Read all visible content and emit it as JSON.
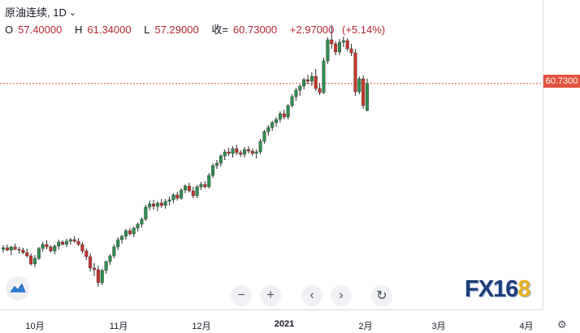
{
  "legend": {
    "symbol": "原油连续",
    "interval": "1D",
    "open_label": "O",
    "open": "57.40000",
    "high_label": "H",
    "high": "61.34000",
    "low_label": "L",
    "low": "57.29000",
    "close_label": "收=",
    "close": "60.73000",
    "change": "+2.97000",
    "change_pct": "(+5.14%)"
  },
  "price_tag": "60.7300",
  "controls": {
    "zoom_out": "−",
    "zoom_in": "+",
    "scroll_left": "‹",
    "scroll_right": "›",
    "reset": "↻"
  },
  "time_axis": {
    "ticks": [
      {
        "label": "10月",
        "bold": false
      },
      {
        "label": "11月",
        "bold": false
      },
      {
        "label": "12月",
        "bold": false
      },
      {
        "label": "2021",
        "bold": true
      },
      {
        "label": "2月",
        "bold": false
      },
      {
        "label": "3月",
        "bold": false
      },
      {
        "label": "4月",
        "bold": false
      }
    ]
  },
  "watermark": {
    "text_main": "FX16",
    "text_accent": "8"
  },
  "colors": {
    "up": "#2f8f4e",
    "down": "#c8342b",
    "price_line": "#e0533e"
  },
  "chart_data": {
    "type": "candlestick",
    "title": "",
    "candles": [
      [
        40.3,
        40.8,
        39.9,
        40.5
      ],
      [
        40.5,
        40.9,
        40.1,
        40.2
      ],
      [
        40.2,
        40.7,
        39.6,
        40.6
      ],
      [
        40.6,
        41.0,
        40.2,
        40.3
      ],
      [
        40.3,
        40.6,
        39.8,
        40.2
      ],
      [
        40.2,
        40.5,
        39.7,
        39.9
      ],
      [
        39.9,
        40.4,
        39.3,
        39.5
      ],
      [
        39.5,
        39.8,
        38.3,
        38.5
      ],
      [
        38.5,
        39.6,
        38.1,
        39.2
      ],
      [
        39.2,
        40.6,
        39.0,
        40.4
      ],
      [
        40.4,
        41.2,
        40.0,
        40.9
      ],
      [
        40.9,
        41.4,
        40.3,
        40.6
      ],
      [
        40.6,
        40.8,
        39.9,
        40.1
      ],
      [
        40.1,
        40.9,
        39.7,
        40.7
      ],
      [
        40.7,
        41.5,
        40.3,
        41.2
      ],
      [
        41.2,
        41.4,
        40.8,
        40.9
      ],
      [
        40.9,
        41.6,
        40.6,
        41.3
      ],
      [
        41.3,
        41.7,
        40.9,
        41.5
      ],
      [
        41.5,
        41.9,
        41.1,
        41.3
      ],
      [
        41.3,
        41.7,
        40.7,
        40.9
      ],
      [
        40.9,
        41.2,
        39.8,
        40.1
      ],
      [
        40.1,
        40.4,
        39.0,
        39.4
      ],
      [
        39.4,
        39.8,
        37.6,
        38.0
      ],
      [
        38.0,
        38.6,
        37.0,
        37.8
      ],
      [
        37.8,
        38.3,
        35.7,
        36.2
      ],
      [
        36.2,
        37.9,
        35.9,
        37.7
      ],
      [
        37.7,
        38.9,
        37.3,
        38.8
      ],
      [
        38.8,
        39.7,
        38.4,
        39.5
      ],
      [
        39.5,
        40.9,
        39.2,
        40.6
      ],
      [
        40.6,
        41.8,
        40.2,
        41.5
      ],
      [
        41.5,
        42.1,
        41.0,
        41.9
      ],
      [
        41.9,
        42.8,
        41.5,
        42.6
      ],
      [
        42.6,
        42.9,
        42.0,
        42.2
      ],
      [
        42.2,
        43.1,
        41.8,
        42.9
      ],
      [
        42.9,
        43.6,
        42.5,
        43.4
      ],
      [
        43.4,
        44.2,
        43.0,
        44.0
      ],
      [
        44.0,
        45.8,
        43.8,
        45.5
      ],
      [
        45.5,
        46.3,
        45.1,
        45.9
      ],
      [
        45.9,
        46.4,
        45.2,
        45.6
      ],
      [
        45.6,
        46.2,
        45.0,
        46.0
      ],
      [
        46.0,
        46.5,
        45.4,
        45.7
      ],
      [
        45.7,
        46.5,
        45.3,
        46.2
      ],
      [
        46.2,
        46.8,
        45.7,
        46.4
      ],
      [
        46.4,
        47.2,
        46.0,
        47.0
      ],
      [
        47.0,
        47.4,
        46.3,
        46.6
      ],
      [
        46.6,
        47.8,
        46.4,
        47.6
      ],
      [
        47.6,
        48.3,
        47.2,
        48.1
      ],
      [
        48.1,
        48.5,
        47.3,
        47.5
      ],
      [
        47.5,
        48.0,
        46.6,
        46.9
      ],
      [
        46.9,
        48.2,
        46.6,
        48.0
      ],
      [
        48.0,
        48.6,
        47.6,
        48.3
      ],
      [
        48.3,
        48.7,
        47.8,
        48.0
      ],
      [
        48.0,
        49.7,
        47.8,
        49.4
      ],
      [
        49.4,
        50.9,
        49.1,
        50.6
      ],
      [
        50.6,
        51.3,
        50.2,
        50.9
      ],
      [
        50.9,
        52.0,
        50.5,
        51.8
      ],
      [
        51.8,
        52.6,
        51.3,
        52.3
      ],
      [
        52.3,
        52.8,
        51.8,
        52.1
      ],
      [
        52.1,
        53.0,
        51.6,
        52.7
      ],
      [
        52.7,
        53.2,
        51.9,
        52.2
      ],
      [
        52.2,
        52.5,
        51.7,
        52.0
      ],
      [
        52.0,
        52.9,
        51.6,
        52.6
      ],
      [
        52.6,
        53.0,
        52.1,
        52.4
      ],
      [
        52.4,
        52.7,
        51.8,
        52.1
      ],
      [
        52.1,
        52.6,
        51.5,
        52.3
      ],
      [
        52.3,
        53.9,
        52.0,
        53.6
      ],
      [
        53.6,
        55.0,
        53.3,
        54.8
      ],
      [
        54.8,
        55.6,
        54.3,
        55.3
      ],
      [
        55.3,
        56.1,
        54.9,
        55.9
      ],
      [
        55.9,
        56.6,
        55.4,
        56.3
      ],
      [
        56.3,
        57.3,
        55.9,
        57.0
      ],
      [
        57.0,
        57.5,
        56.3,
        56.6
      ],
      [
        56.6,
        58.2,
        56.3,
        58.0
      ],
      [
        58.0,
        59.4,
        57.8,
        59.1
      ],
      [
        59.1,
        60.2,
        58.6,
        59.9
      ],
      [
        59.9,
        60.6,
        59.2,
        60.4
      ],
      [
        60.4,
        61.4,
        60.0,
        61.2
      ],
      [
        61.2,
        61.8,
        60.6,
        61.0
      ],
      [
        61.0,
        62.1,
        60.4,
        61.6
      ],
      [
        61.6,
        62.5,
        59.8,
        60.1
      ],
      [
        60.1,
        60.7,
        59.3,
        59.6
      ],
      [
        59.6,
        63.9,
        59.4,
        63.5
      ],
      [
        63.5,
        66.4,
        63.1,
        66.1
      ],
      [
        66.1,
        67.9,
        65.0,
        65.6
      ],
      [
        65.6,
        65.9,
        64.2,
        64.6
      ],
      [
        64.6,
        66.2,
        64.2,
        65.8
      ],
      [
        65.8,
        66.5,
        65.2,
        66.0
      ],
      [
        66.0,
        66.3,
        64.7,
        65.0
      ],
      [
        65.0,
        65.6,
        64.1,
        64.5
      ],
      [
        64.5,
        65.0,
        59.2,
        59.7
      ],
      [
        59.7,
        61.6,
        59.4,
        61.3
      ],
      [
        61.3,
        61.7,
        57.6,
        58.0
      ],
      [
        57.4,
        61.34,
        57.29,
        60.73
      ]
    ],
    "ylim": [
      35,
      69
    ],
    "last_price": 60.73
  }
}
